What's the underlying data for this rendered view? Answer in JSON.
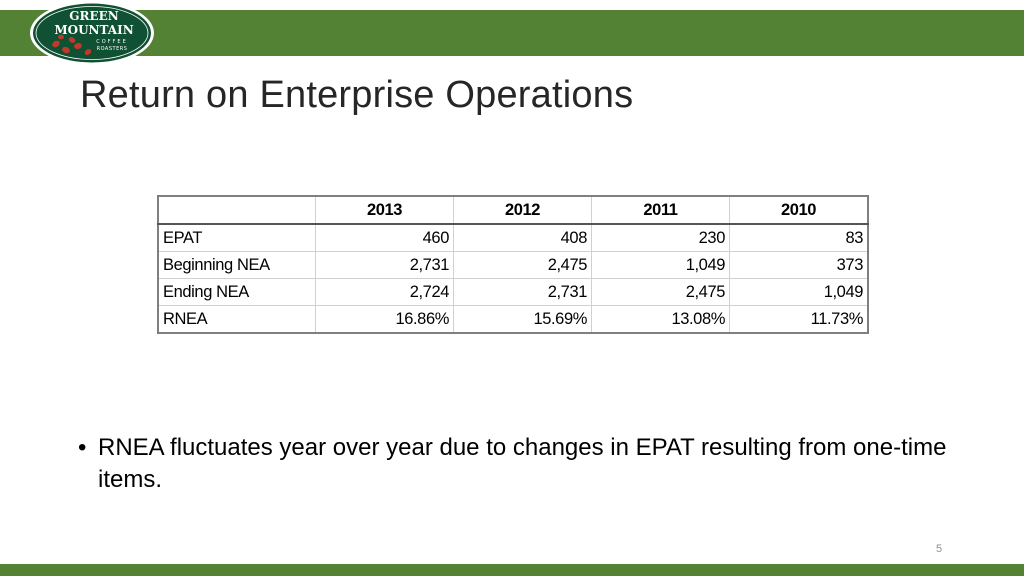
{
  "logo": {
    "line1": "GREEN",
    "line2": "MOUNTAIN",
    "line3": "COFFEE",
    "line4": "ROASTERS"
  },
  "colors": {
    "brand_green": "#548235",
    "logo_green": "#0f5132",
    "logo_red": "#c0392b"
  },
  "slide": {
    "title": "Return on Enterprise Operations",
    "page_number": "5"
  },
  "table": {
    "headers": [
      "",
      "2013",
      "2012",
      "2011",
      "2010"
    ],
    "rows": [
      {
        "label": "EPAT",
        "values": [
          "460",
          "408",
          "230",
          "83"
        ]
      },
      {
        "label": "Beginning NEA",
        "values": [
          "2,731",
          "2,475",
          "1,049",
          "373"
        ]
      },
      {
        "label": "Ending NEA",
        "values": [
          "2,724",
          "2,731",
          "2,475",
          "1,049"
        ]
      },
      {
        "label": "RNEA",
        "values": [
          "16.86%",
          "15.69%",
          "13.08%",
          "11.73%"
        ]
      }
    ]
  },
  "bullets": [
    "RNEA fluctuates year over year due to changes in EPAT resulting from one-time items."
  ]
}
